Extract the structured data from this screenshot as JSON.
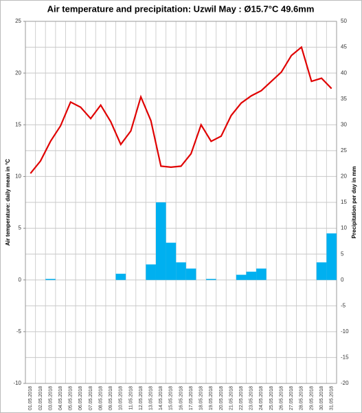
{
  "chart_data": {
    "type": "bar-line",
    "title": "Air temperature and precipitation: Uzwil May : Ø15.7°C 49.6mm",
    "y_label": "Air temperature: daily mean in °C",
    "y2_label": "Precipitation per day in mm",
    "categories": [
      "01.05.2018",
      "02.05.2018",
      "03.05.2018",
      "04.05.2018",
      "05.05.2018",
      "06.05.2018",
      "07.05.2018",
      "08.05.2018",
      "09.05.2018",
      "10.05.2018",
      "11.05.2018",
      "12.05.2018",
      "13.05.2018",
      "14.05.2018",
      "15.05.2018",
      "16.05.2018",
      "17.05.2018",
      "18.05.2018",
      "19.05.2018",
      "20.05.2018",
      "21.05.2018",
      "22.05.2018",
      "23.05.2018",
      "24.05.2018",
      "25.05.2018",
      "26.05.2018",
      "27.05.2018",
      "28.05.2018",
      "29.05.2018",
      "30.05.2018",
      "31.05.2018"
    ],
    "series": [
      {
        "name": "Air temperature",
        "type": "line",
        "color": "#e00000",
        "values": [
          10.3,
          11.5,
          13.4,
          14.9,
          17.2,
          16.7,
          15.6,
          16.9,
          15.3,
          13.1,
          14.4,
          17.7,
          15.4,
          11.0,
          10.9,
          11.0,
          12.2,
          15.0,
          13.4,
          13.9,
          15.9,
          17.1,
          17.8,
          18.3,
          19.2,
          20.1,
          21.7,
          22.5,
          19.2,
          19.5,
          18.5
        ]
      },
      {
        "name": "Precipitation",
        "type": "bar",
        "axis": "y2",
        "color": "#00b0f0",
        "values": [
          0,
          0,
          0.2,
          0,
          0,
          0,
          0,
          0,
          0,
          1.2,
          0,
          0,
          3,
          15,
          7.2,
          3.4,
          2.2,
          0,
          0.2,
          0,
          0,
          1,
          1.6,
          2.2,
          0,
          0,
          0,
          0,
          0,
          3.4,
          9
        ]
      }
    ],
    "ylim": [
      -10,
      25
    ],
    "yticks": [
      -10,
      -5,
      0,
      5,
      10,
      15,
      20,
      25
    ],
    "y2lim": [
      -20,
      50
    ],
    "y2ticks": [
      -20,
      -15,
      -10,
      -5,
      0,
      5,
      10,
      15,
      20,
      25,
      30,
      35,
      40,
      45,
      50
    ],
    "grid": true
  }
}
